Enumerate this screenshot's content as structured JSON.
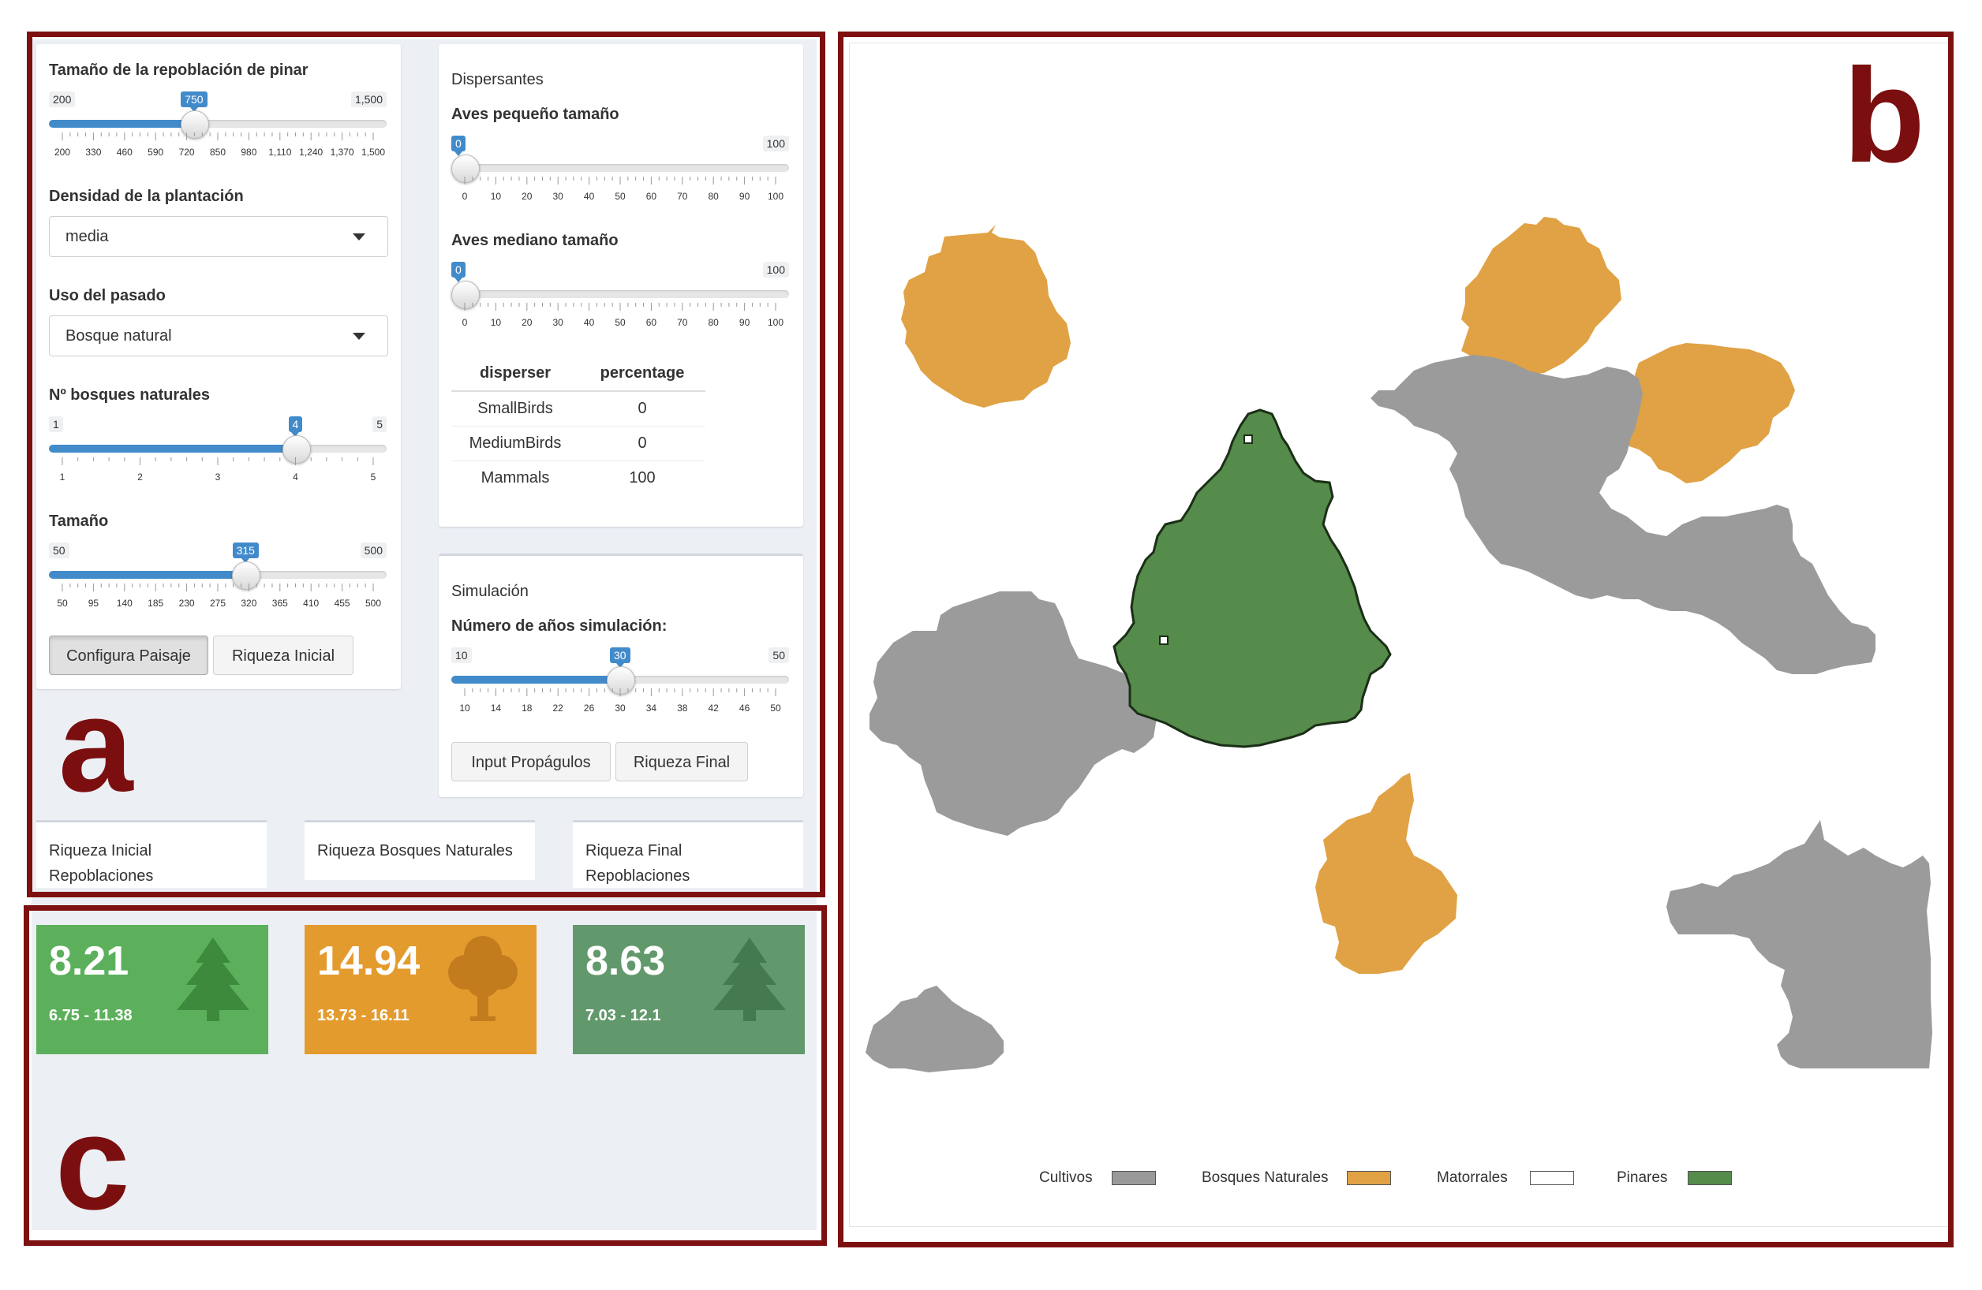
{
  "left": {
    "sizes": {
      "label": "Tamaño de la repoblación de pinar",
      "min": "200",
      "max": "1,500",
      "value": "750",
      "fraction": 0.423,
      "ticks": [
        "200",
        "330",
        "460",
        "590",
        "720",
        "850",
        "980",
        "1,110",
        "1,240",
        "1,370",
        "1,500"
      ]
    },
    "density": {
      "label": "Densidad de la plantación",
      "value": "media"
    },
    "past_use": {
      "label": "Uso del pasado",
      "value": "Bosque natural"
    },
    "n_forests": {
      "label": "Nº bosques naturales",
      "min": "1",
      "max": "5",
      "value": "4",
      "fraction": 0.75,
      "ticks": [
        "1",
        "2",
        "3",
        "4",
        "5"
      ]
    },
    "size": {
      "label": "Tamaño",
      "min": "50",
      "max": "500",
      "value": "315",
      "fraction": 0.589,
      "ticks": [
        "50",
        "95",
        "140",
        "185",
        "230",
        "275",
        "320",
        "365",
        "410",
        "455",
        "500"
      ]
    },
    "btn_config": "Configura Paisaje",
    "btn_initial": "Riqueza Inicial"
  },
  "dispersers": {
    "title": "Dispersantes",
    "small_birds": {
      "label": "Aves pequeño tamaño",
      "min": "0",
      "max": "100",
      "value": "0",
      "fraction": 0,
      "ticks": [
        "0",
        "10",
        "20",
        "30",
        "40",
        "50",
        "60",
        "70",
        "80",
        "90",
        "100"
      ]
    },
    "medium_birds": {
      "label": "Aves mediano tamaño",
      "min": "0",
      "max": "100",
      "value": "0",
      "fraction": 0,
      "ticks": [
        "0",
        "10",
        "20",
        "30",
        "40",
        "50",
        "60",
        "70",
        "80",
        "90",
        "100"
      ]
    },
    "table": {
      "headers": [
        "disperser",
        "percentage"
      ],
      "rows": [
        [
          "SmallBirds",
          "0"
        ],
        [
          "MediumBirds",
          "0"
        ],
        [
          "Mammals",
          "100"
        ]
      ]
    }
  },
  "simulation": {
    "title": "Simulación",
    "years": {
      "label": "Número de años simulación:",
      "min": "10",
      "max": "50",
      "value": "30",
      "fraction": 0.5,
      "ticks": [
        "10",
        "14",
        "18",
        "22",
        "26",
        "30",
        "34",
        "38",
        "42",
        "46",
        "50"
      ]
    },
    "btn_input": "Input Propágulos",
    "btn_final": "Riqueza Final"
  },
  "tabs": [
    "Riqueza Inicial Repoblaciones",
    "Riqueza Bosques Naturales",
    "Riqueza Final Repoblaciones"
  ],
  "value_boxes": [
    {
      "value": "8.21",
      "range": "6.75 - 11.38",
      "color": "#5cb05c",
      "icon": "pine-tree-icon"
    },
    {
      "value": "14.94",
      "range": "13.73 - 16.11",
      "color": "#e49b2e",
      "icon": "deciduous-tree-icon"
    },
    {
      "value": "8.63",
      "range": "7.03 - 12.1",
      "color": "#62996c",
      "icon": "pine-tree-icon"
    }
  ],
  "map": {
    "legend": [
      {
        "label": "Cultivos",
        "color": "#999999"
      },
      {
        "label": "Bosques Naturales",
        "color": "#e0a244"
      },
      {
        "label": "Matorrales",
        "color": "#ffffff"
      },
      {
        "label": "Pinares",
        "color": "#558b4b"
      }
    ]
  },
  "annotations": {
    "a": "a",
    "b": "b",
    "c": "c"
  }
}
